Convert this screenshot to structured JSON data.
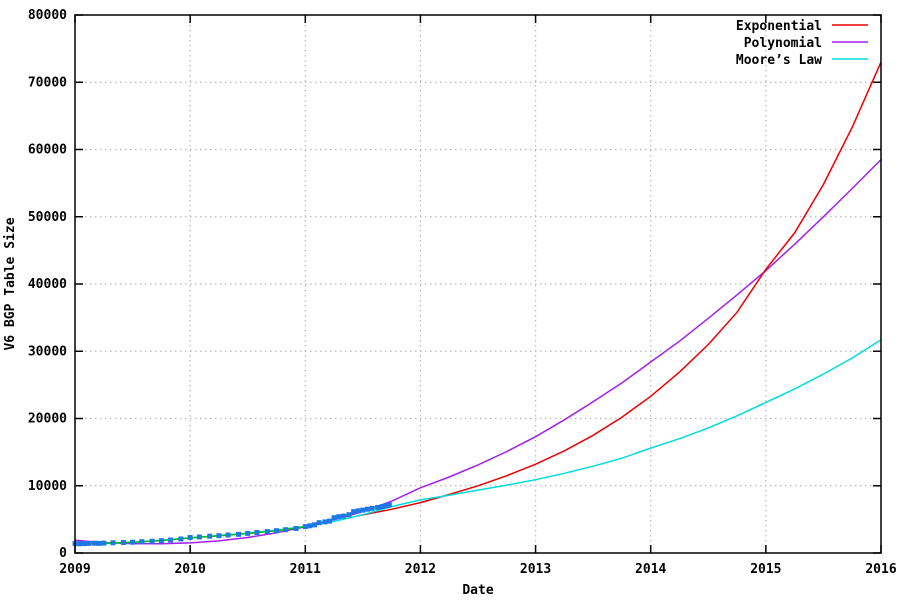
{
  "chart_data": {
    "type": "line",
    "title": "",
    "xlabel": "Date",
    "ylabel": "V6 BGP Table Size",
    "xlim": [
      2009,
      2016
    ],
    "ylim": [
      0,
      80000
    ],
    "xticks": [
      2009,
      2010,
      2011,
      2012,
      2013,
      2014,
      2015,
      2016
    ],
    "yticks": [
      0,
      10000,
      20000,
      30000,
      40000,
      50000,
      60000,
      70000,
      80000
    ],
    "grid": {
      "style": "dotted",
      "color": "#b8b8b8"
    },
    "axis_color": "#000000",
    "legend_position": "top-right",
    "legend": [
      {
        "label": "Exponential",
        "color": "#ee0000"
      },
      {
        "label": "Polynomial",
        "color": "#a020f0"
      },
      {
        "label": "Moore’s Law",
        "color": "#00dddd"
      }
    ],
    "series": [
      {
        "key": "polynomial-fit",
        "label": "Polynomial",
        "color": "#a020f0",
        "display": "line",
        "points": [
          [
            2009,
            1900
          ],
          [
            2009.25,
            1550
          ],
          [
            2009.5,
            1400
          ],
          [
            2009.75,
            1380
          ],
          [
            2010,
            1500
          ],
          [
            2010.25,
            1800
          ],
          [
            2010.5,
            2300
          ],
          [
            2010.75,
            3000
          ],
          [
            2011,
            3900
          ],
          [
            2011.25,
            4950
          ],
          [
            2011.5,
            6150
          ],
          [
            2011.75,
            7700
          ],
          [
            2012,
            9700
          ],
          [
            2012.25,
            11300
          ],
          [
            2012.5,
            13100
          ],
          [
            2012.75,
            15100
          ],
          [
            2013,
            17300
          ],
          [
            2013.25,
            19800
          ],
          [
            2013.5,
            22500
          ],
          [
            2013.75,
            25300
          ],
          [
            2014,
            28400
          ],
          [
            2014.25,
            31500
          ],
          [
            2014.5,
            34900
          ],
          [
            2014.75,
            38400
          ],
          [
            2015,
            42000
          ],
          [
            2015.25,
            45900
          ],
          [
            2015.5,
            50000
          ],
          [
            2015.75,
            54200
          ],
          [
            2016,
            58500
          ]
        ]
      },
      {
        "key": "exponential-fit",
        "label": "Exponential",
        "color": "#ee0000",
        "display": "line",
        "points": [
          [
            2011.45,
            5500
          ],
          [
            2011.75,
            6500
          ],
          [
            2012,
            7500
          ],
          [
            2012.25,
            8700
          ],
          [
            2012.5,
            10000
          ],
          [
            2012.75,
            11500
          ],
          [
            2013,
            13200
          ],
          [
            2013.25,
            15200
          ],
          [
            2013.5,
            17500
          ],
          [
            2013.75,
            20200
          ],
          [
            2014,
            23300
          ],
          [
            2014.25,
            26900
          ],
          [
            2014.5,
            31000
          ],
          [
            2014.75,
            35800
          ],
          [
            2015,
            42200
          ],
          [
            2015.25,
            47600
          ],
          [
            2015.5,
            54800
          ],
          [
            2015.75,
            63300
          ],
          [
            2016,
            73000
          ]
        ]
      },
      {
        "key": "moores-law-fit",
        "label": "Moore’s Law",
        "color": "#00dddd",
        "display": "line",
        "points": [
          [
            2009,
            1250
          ],
          [
            2009.25,
            1400
          ],
          [
            2009.5,
            1600
          ],
          [
            2009.75,
            1900
          ],
          [
            2010,
            2250
          ],
          [
            2010.25,
            2600
          ],
          [
            2010.5,
            2950
          ],
          [
            2010.75,
            3400
          ],
          [
            2011,
            3950
          ],
          [
            2011.25,
            4700
          ],
          [
            2011.5,
            5700
          ],
          [
            2011.75,
            6900
          ],
          [
            2012,
            7900
          ],
          [
            2012.25,
            8600
          ],
          [
            2012.5,
            9350
          ],
          [
            2012.75,
            10100
          ],
          [
            2013,
            10900
          ],
          [
            2013.25,
            11850
          ],
          [
            2013.5,
            12900
          ],
          [
            2013.75,
            14100
          ],
          [
            2014,
            15600
          ],
          [
            2014.25,
            17000
          ],
          [
            2014.5,
            18600
          ],
          [
            2014.75,
            20400
          ],
          [
            2015,
            22400
          ],
          [
            2015.25,
            24400
          ],
          [
            2015.5,
            26600
          ],
          [
            2015.75,
            29000
          ],
          [
            2016,
            31700
          ]
        ]
      },
      {
        "key": "smoothed-observed-data",
        "label": "",
        "color": "#00c000",
        "display": "line",
        "points": [
          [
            2009,
            1350
          ],
          [
            2009.25,
            1450
          ],
          [
            2009.5,
            1600
          ],
          [
            2009.75,
            1850
          ],
          [
            2010,
            2250
          ],
          [
            2010.25,
            2550
          ],
          [
            2010.5,
            2900
          ],
          [
            2010.75,
            3300
          ],
          [
            2011,
            3900
          ],
          [
            2011.1,
            4250
          ],
          [
            2011.2,
            4850
          ],
          [
            2011.3,
            5400
          ],
          [
            2011.4,
            5950
          ],
          [
            2011.5,
            6350
          ],
          [
            2011.6,
            6700
          ],
          [
            2011.7,
            7000
          ],
          [
            2011.75,
            7150
          ]
        ]
      },
      {
        "key": "observed-v6-bgp-table-size",
        "label": "",
        "color": "#1e78e8",
        "display": "points",
        "points": [
          [
            2009,
            1400
          ],
          [
            2009.04,
            1370
          ],
          [
            2009.08,
            1400
          ],
          [
            2009.12,
            1430
          ],
          [
            2009.17,
            1450
          ],
          [
            2009.21,
            1430
          ],
          [
            2009.25,
            1470
          ],
          [
            2009.33,
            1520
          ],
          [
            2009.42,
            1560
          ],
          [
            2009.5,
            1610
          ],
          [
            2009.58,
            1680
          ],
          [
            2009.67,
            1740
          ],
          [
            2009.75,
            1830
          ],
          [
            2009.83,
            1940
          ],
          [
            2009.92,
            2080
          ],
          [
            2010,
            2300
          ],
          [
            2010.08,
            2380
          ],
          [
            2010.17,
            2500
          ],
          [
            2010.25,
            2570
          ],
          [
            2010.33,
            2680
          ],
          [
            2010.42,
            2780
          ],
          [
            2010.5,
            2920
          ],
          [
            2010.58,
            3050
          ],
          [
            2010.67,
            3180
          ],
          [
            2010.75,
            3320
          ],
          [
            2010.83,
            3470
          ],
          [
            2010.92,
            3650
          ],
          [
            2011,
            3920
          ],
          [
            2011.04,
            4050
          ],
          [
            2011.08,
            4200
          ],
          [
            2011.12,
            4500
          ],
          [
            2011.17,
            4620
          ],
          [
            2011.21,
            4750
          ],
          [
            2011.25,
            5250
          ],
          [
            2011.29,
            5380
          ],
          [
            2011.33,
            5480
          ],
          [
            2011.38,
            5700
          ],
          [
            2011.42,
            6150
          ],
          [
            2011.46,
            6280
          ],
          [
            2011.5,
            6380
          ],
          [
            2011.54,
            6520
          ],
          [
            2011.58,
            6650
          ],
          [
            2011.63,
            6780
          ],
          [
            2011.67,
            6900
          ],
          [
            2011.71,
            7050
          ],
          [
            2011.73,
            7150
          ]
        ]
      }
    ]
  }
}
